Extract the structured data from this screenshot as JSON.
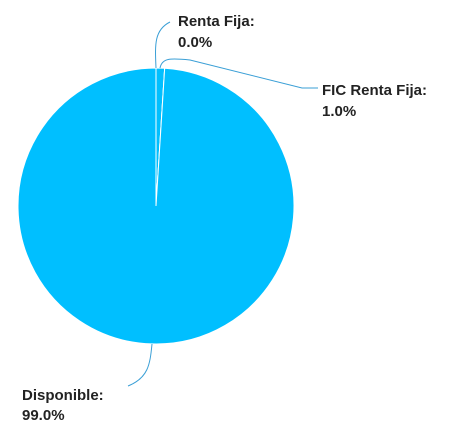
{
  "chart_data": {
    "type": "pie",
    "slices": [
      {
        "label": "Disponible",
        "value": 99.0,
        "display": "99.0%",
        "color": "#00bfff"
      },
      {
        "label": "FIC Renta Fija",
        "value": 1.0,
        "display": "1.0%",
        "color": "#00bfff"
      },
      {
        "label": "Renta Fija",
        "value": 0.0,
        "display": "0.0%",
        "color": "#00bfff"
      }
    ],
    "slice_border_color": "#ffffff",
    "leader_line_color": "#3a9fd6",
    "label_color": "#222222",
    "legend": "none"
  }
}
